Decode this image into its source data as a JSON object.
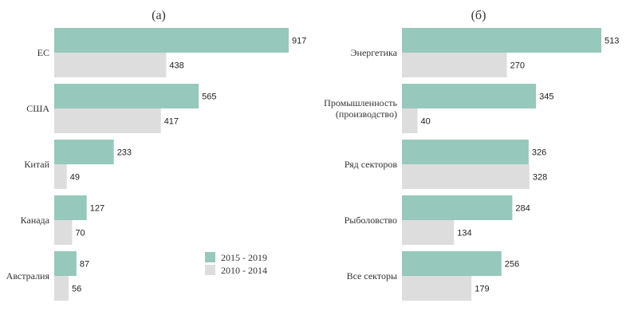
{
  "chart_data": [
    {
      "type": "bar",
      "orientation": "horizontal",
      "title": "(a)",
      "categories": [
        "ЕС",
        "США",
        "Китай",
        "Канада",
        "Австралия"
      ],
      "series": [
        {
          "name": "2015 - 2019",
          "color": "#96c8bc",
          "values": [
            917,
            565,
            233,
            127,
            87
          ]
        },
        {
          "name": "2010 - 2014",
          "color": "#dddddd",
          "values": [
            438,
            417,
            49,
            70,
            56
          ]
        }
      ],
      "xlim": [
        0,
        917
      ],
      "grid": false,
      "legend": {
        "position": "bottom-right",
        "entries": [
          "2015 - 2019",
          "2010 - 2014"
        ]
      }
    },
    {
      "type": "bar",
      "orientation": "horizontal",
      "title": "(б)",
      "categories": [
        [
          "Энергетика"
        ],
        [
          "Промышленность",
          "(производство)"
        ],
        [
          "Ряд секторов"
        ],
        [
          "Рыболовство"
        ],
        [
          "Все секторы"
        ]
      ],
      "series": [
        {
          "name": "2015 - 2019",
          "color": "#96c8bc",
          "values": [
            513,
            345,
            326,
            284,
            256
          ]
        },
        {
          "name": "2010 - 2014",
          "color": "#dddddd",
          "values": [
            270,
            40,
            328,
            134,
            179
          ]
        }
      ],
      "xlim": [
        0,
        513
      ],
      "grid": false
    }
  ]
}
